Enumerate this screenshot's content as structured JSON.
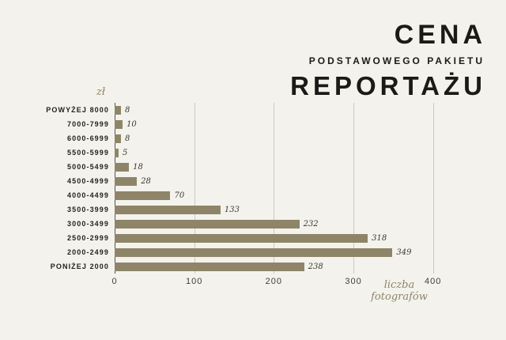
{
  "title": {
    "line1": "CENA",
    "line2": "PODSTAWOWEGO PAKIETU",
    "line3": "REPORTAŻU"
  },
  "chart_data": {
    "type": "bar",
    "orientation": "horizontal",
    "title": "CENA PODSTAWOWEGO PAKIETU REPORTAŻU",
    "ylabel": "zł",
    "xlabel": "liczba fotografów",
    "categories": [
      "POWYŻEJ 8000",
      "7000-7999",
      "6000-6999",
      "5500-5999",
      "5000-5499",
      "4500-4999",
      "4000-4499",
      "3500-3999",
      "3000-3499",
      "2500-2999",
      "2000-2499",
      "PONIŻEJ 2000"
    ],
    "values": [
      8,
      10,
      8,
      5,
      18,
      28,
      70,
      133,
      232,
      318,
      349,
      238
    ],
    "x_ticks": [
      0,
      100,
      200,
      300,
      400
    ],
    "xlim": [
      0,
      437
    ],
    "grid": "vertical-lines-only",
    "legend": "none",
    "bar_color": "#8e8569",
    "background": "#f4f2ec",
    "accent_color": "#8d8569",
    "text_color": "#1b1a18"
  }
}
